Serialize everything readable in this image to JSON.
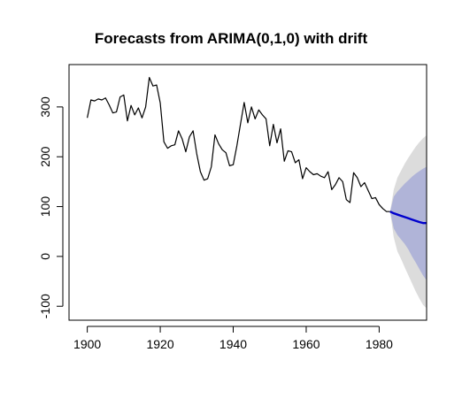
{
  "chart_data": {
    "type": "line",
    "title": "Forecasts from ARIMA(0,1,0) with drift",
    "xlabel": "",
    "ylabel": "",
    "xlim": [
      1895,
      1993
    ],
    "ylim": [
      -128,
      385
    ],
    "x_ticks": [
      1900,
      1920,
      1940,
      1960,
      1980
    ],
    "y_ticks": [
      -100,
      0,
      100,
      200,
      300
    ],
    "grid": false,
    "legend": "none",
    "colors": {
      "observed": "#000000",
      "forecast": "#0000cd",
      "band80": "#b0b4d8",
      "band95": "#dcdcdc",
      "axis": "#000000"
    },
    "series": [
      {
        "x": [
          1900,
          1901,
          1902,
          1903,
          1904,
          1905,
          1906,
          1907,
          1908,
          1909,
          1910,
          1911,
          1912,
          1913,
          1914,
          1915,
          1916,
          1917,
          1918,
          1919,
          1920,
          1921,
          1922,
          1923,
          1924,
          1925,
          1926,
          1927,
          1928,
          1929,
          1930,
          1931,
          1932,
          1933,
          1934,
          1935,
          1936,
          1937,
          1938,
          1939,
          1940,
          1941,
          1942,
          1943,
          1944,
          1945,
          1946,
          1947,
          1948,
          1949,
          1950,
          1951,
          1952,
          1953,
          1954,
          1955,
          1956,
          1957,
          1958,
          1959,
          1960,
          1961,
          1962,
          1963,
          1964,
          1965,
          1966,
          1967,
          1968,
          1969,
          1970,
          1971,
          1972,
          1973,
          1974,
          1975,
          1976,
          1977,
          1978,
          1979,
          1980,
          1981,
          1982,
          1983
        ],
        "values": [
          278,
          314,
          312,
          316,
          314,
          318,
          304,
          288,
          290,
          320,
          324,
          272,
          303,
          284,
          298,
          278,
          300,
          359,
          342,
          344,
          308,
          230,
          217,
          222,
          224,
          252,
          236,
          210,
          240,
          252,
          206,
          170,
          153,
          156,
          180,
          244,
          226,
          214,
          208,
          182,
          184,
          222,
          266,
          309,
          268,
          300,
          276,
          294,
          284,
          276,
          222,
          265,
          228,
          256,
          191,
          212,
          210,
          188,
          194,
          156,
          178,
          170,
          164,
          166,
          161,
          158,
          170,
          134,
          144,
          158,
          150,
          114,
          108,
          168,
          158,
          140,
          148,
          132,
          116,
          118,
          104,
          96,
          90,
          90
        ],
        "color": "#000000"
      }
    ],
    "forecast": {
      "x": [
        1983,
        1984,
        1985,
        1986,
        1987,
        1988,
        1989,
        1990,
        1991,
        1992,
        1993
      ],
      "mean": [
        90,
        86.5,
        84,
        81.5,
        79,
        76.5,
        74,
        71.5,
        69,
        67,
        67
      ],
      "lo80": [
        90,
        56,
        43,
        34,
        25,
        14,
        0,
        -12,
        -25,
        -38,
        -48
      ],
      "hi80": [
        90,
        120,
        130,
        138,
        146,
        153,
        160,
        166,
        171,
        176,
        180
      ],
      "lo95": [
        90,
        38,
        10,
        -5,
        -22,
        -38,
        -54,
        -70,
        -84,
        -97,
        -104
      ],
      "hi95": [
        90,
        134,
        158,
        172,
        186,
        198,
        209,
        220,
        229,
        237,
        243
      ]
    }
  }
}
